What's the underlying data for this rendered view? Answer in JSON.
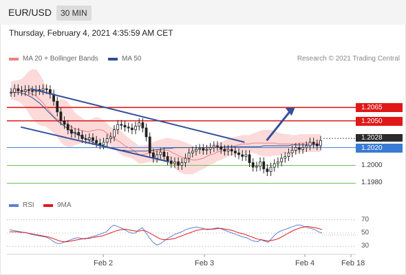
{
  "header": {
    "pair": "EUR/USD",
    "timeframe": "30 MIN"
  },
  "datetime": "Thursday, February 4, 2021 4:35:59 AM CET",
  "legend": {
    "ma20_label": "MA 20 + Bollinger Bands",
    "ma50_label": "MA 50",
    "rsi_label": "RSI",
    "ma9_label": "9MA"
  },
  "credit": "Research © 2021 Trading Central",
  "colors": {
    "ma20": "#f08080",
    "ma50": "#2c4f8f",
    "resistance": "#e01818",
    "support": "#6cbf4f",
    "current": "#3a7bd5",
    "rsi": "#5b7fd6",
    "rsi_ma": "#e01818",
    "band": "#fcd3d3",
    "channel": "#34509a",
    "candle": "#222222"
  },
  "chart_data": {
    "type": "candlestick",
    "symbol": "EUR/USD",
    "interval": "30 MIN",
    "x_ticks": [
      "Feb 2",
      "Feb 3",
      "Feb 4",
      "Feb 18"
    ],
    "last_price": "1.2028",
    "levels": [
      {
        "value": "1.2065",
        "kind": "resistance"
      },
      {
        "value": "1.2050",
        "kind": "resistance"
      },
      {
        "value": "1.2020",
        "kind": "pivot"
      },
      {
        "value": "1.2000",
        "kind": "support"
      },
      {
        "value": "1.1980",
        "kind": "support"
      }
    ],
    "price_range": [
      1.1968,
      1.211
    ],
    "close_series": [
      1.2082,
      1.2086,
      1.2084,
      1.2083,
      1.2085,
      1.2084,
      1.2083,
      1.2085,
      1.2084,
      1.2086,
      1.2085,
      1.208,
      1.2072,
      1.206,
      1.205,
      1.2046,
      1.204,
      1.2036,
      1.2037,
      1.2034,
      1.203,
      1.2029,
      1.2031,
      1.2028,
      1.2025,
      1.2023,
      1.2026,
      1.203,
      1.2032,
      1.204,
      1.2046,
      1.2045,
      1.2043,
      1.2042,
      1.204,
      1.2044,
      1.2048,
      1.2042,
      1.2032,
      1.2014,
      1.2008,
      1.2012,
      1.2015,
      1.201,
      1.2005,
      1.2002,
      1.2004,
      1.2,
      1.2003,
      1.2008,
      1.2014,
      1.2016,
      1.2018,
      1.2019,
      1.2017,
      1.2018,
      1.202,
      1.2022,
      1.2021,
      1.2018,
      1.2016,
      1.2018,
      1.2016,
      1.2014,
      1.2012,
      1.201,
      1.2012,
      1.2003,
      1.1998,
      1.1999,
      1.2004,
      1.1996,
      1.1993,
      1.1998,
      1.2002,
      1.2004,
      1.2008,
      1.201,
      1.2014,
      1.2017,
      1.202,
      1.2018,
      1.202,
      1.2022,
      1.2026,
      1.2024,
      1.2022,
      1.2028
    ],
    "ma20_series": [
      1.2084,
      1.2084,
      1.2084,
      1.2083,
      1.2083,
      1.2082,
      1.208,
      1.2078,
      1.2074,
      1.207,
      1.2065,
      1.206,
      1.2055,
      1.2052,
      1.205,
      1.2048,
      1.2046,
      1.2043,
      1.2041,
      1.204,
      1.2039,
      1.2038,
      1.2038,
      1.2039,
      1.204,
      1.204,
      1.2039,
      1.2036,
      1.2032,
      1.203,
      1.2028,
      1.2025,
      1.2022,
      1.202,
      1.2018,
      1.2015,
      1.2012,
      1.2012,
      1.2013,
      1.2014,
      1.2015,
      1.2016,
      1.2017,
      1.2017,
      1.2017,
      1.2015,
      1.2013,
      1.2011,
      1.2009,
      1.2008,
      1.2007,
      1.2006,
      1.2006,
      1.2007,
      1.2008,
      1.201,
      1.2012,
      1.2013,
      1.2015,
      1.2016,
      1.2018,
      1.202,
      1.2021,
      1.2022,
      1.2023,
      1.2024,
      1.2024,
      1.2024,
      1.2025,
      1.2025,
      1.2025,
      1.2025,
      1.2025,
      1.2025,
      1.2025,
      1.2024,
      1.2024,
      1.2024,
      1.2024,
      1.2024,
      1.2024,
      1.2025,
      1.2025,
      1.2025,
      1.2025,
      1.2025,
      1.2025,
      1.2025
    ],
    "ma50_series": [
      1.2082,
      1.2082,
      1.2082,
      1.2081,
      1.208,
      1.2078,
      1.2076,
      1.2073,
      1.207,
      1.2066,
      1.2062,
      1.2058,
      1.2054,
      1.205,
      1.2047,
      1.2044,
      1.2041,
      1.2038,
      1.2036,
      1.2034,
      1.2032,
      1.203,
      1.2028,
      1.2026,
      1.2024,
      1.2023,
      1.2022,
      1.2021,
      1.202,
      1.2019,
      1.2018,
      1.2017,
      1.2017,
      1.2016,
      1.2016,
      1.2016,
      1.2016,
      1.2016,
      1.2016,
      1.2017,
      1.2017,
      1.2018,
      1.2018,
      1.2019,
      1.2019,
      1.2019,
      1.202,
      1.202,
      1.202,
      1.202,
      1.202,
      1.202,
      1.202,
      1.202,
      1.202,
      1.202,
      1.202,
      1.202,
      1.202,
      1.202,
      1.2021,
      1.2021,
      1.2021,
      1.2021,
      1.2021,
      1.2021,
      1.2021,
      1.2021,
      1.2021,
      1.2021,
      1.2021,
      1.2022,
      1.2022,
      1.2022,
      1.2022,
      1.2022,
      1.2022,
      1.2022,
      1.2022,
      1.2023,
      1.2023,
      1.2023,
      1.2023,
      1.2023,
      1.2023,
      1.2023,
      1.2023,
      1.2023
    ],
    "band_width": [
      0.001,
      0.0011,
      0.0012,
      0.0014,
      0.0018,
      0.0024,
      0.0028,
      0.003,
      0.0029,
      0.0026,
      0.0022,
      0.002,
      0.0019,
      0.002,
      0.0024,
      0.0026,
      0.0025,
      0.0022,
      0.0018,
      0.0016,
      0.0014,
      0.0013,
      0.0013,
      0.0014,
      0.0014,
      0.0013,
      0.0012,
      0.0011,
      0.0011,
      0.0012,
      0.0013,
      0.0013,
      0.0012,
      0.0011,
      0.001,
      0.001,
      0.001,
      0.001,
      0.001,
      0.001,
      0.0011,
      0.0012,
      0.0012,
      0.0013,
      0.0014,
      0.0015,
      0.0016,
      0.0018,
      0.0018,
      0.0018,
      0.0017,
      0.0016,
      0.0014,
      0.0013,
      0.0012,
      0.0012,
      0.0011,
      0.0011,
      0.001,
      0.001,
      0.001,
      0.001,
      0.001,
      0.001,
      0.001,
      0.001,
      0.001,
      0.001,
      0.0011,
      0.0012,
      0.0014,
      0.0015,
      0.0015,
      0.0015,
      0.0014,
      0.0013,
      0.0012,
      0.0011,
      0.0011,
      0.001,
      0.001,
      0.001,
      0.001,
      0.001,
      0.001,
      0.001,
      0.001,
      0.001
    ],
    "channel_upper": [
      {
        "x": 0.07,
        "y": 1.2086
      },
      {
        "x": 0.75,
        "y": 1.2026
      }
    ],
    "channel_lower": [
      {
        "x": 0.04,
        "y": 1.2043
      },
      {
        "x": 0.51,
        "y": 1.2004
      }
    ],
    "forecast_arrow": [
      {
        "x": 0.82,
        "y": 1.2028
      },
      {
        "x": 0.91,
        "y": 1.2065
      }
    ],
    "rsi": {
      "levels": [
        70,
        50,
        30
      ],
      "range": [
        20,
        80
      ],
      "values": [
        55,
        54,
        53,
        52,
        51,
        50,
        48,
        47,
        46,
        45,
        44,
        42,
        38,
        35,
        34,
        36,
        38,
        40,
        42,
        43,
        42,
        41,
        43,
        45,
        46,
        48,
        50,
        52,
        58,
        62,
        60,
        58,
        55,
        52,
        50,
        50,
        55,
        58,
        50,
        42,
        36,
        32,
        34,
        38,
        42,
        45,
        48,
        50,
        52,
        55,
        57,
        58,
        59,
        58,
        57,
        55,
        56,
        57,
        58,
        56,
        54,
        52,
        50,
        48,
        46,
        44,
        43,
        40,
        38,
        37,
        40,
        38,
        36,
        42,
        48,
        52,
        54,
        56,
        58,
        60,
        62,
        62,
        60,
        58,
        57,
        55,
        52,
        50
      ],
      "ma_values": [
        52,
        52,
        52,
        51,
        51,
        50,
        49,
        48,
        47,
        46,
        45,
        44,
        42,
        40,
        38,
        37,
        37,
        38,
        39,
        40,
        41,
        42,
        42,
        43,
        44,
        45,
        46,
        48,
        50,
        52,
        54,
        55,
        56,
        55,
        54,
        53,
        53,
        54,
        53,
        50,
        47,
        44,
        41,
        40,
        40,
        41,
        42,
        44,
        46,
        48,
        50,
        52,
        54,
        55,
        56,
        56,
        56,
        56,
        57,
        57,
        56,
        55,
        54,
        52,
        50,
        49,
        47,
        45,
        43,
        41,
        40,
        39,
        38,
        39,
        40,
        42,
        45,
        48,
        51,
        54,
        56,
        58,
        59,
        60,
        59,
        58,
        57,
        55
      ]
    }
  }
}
